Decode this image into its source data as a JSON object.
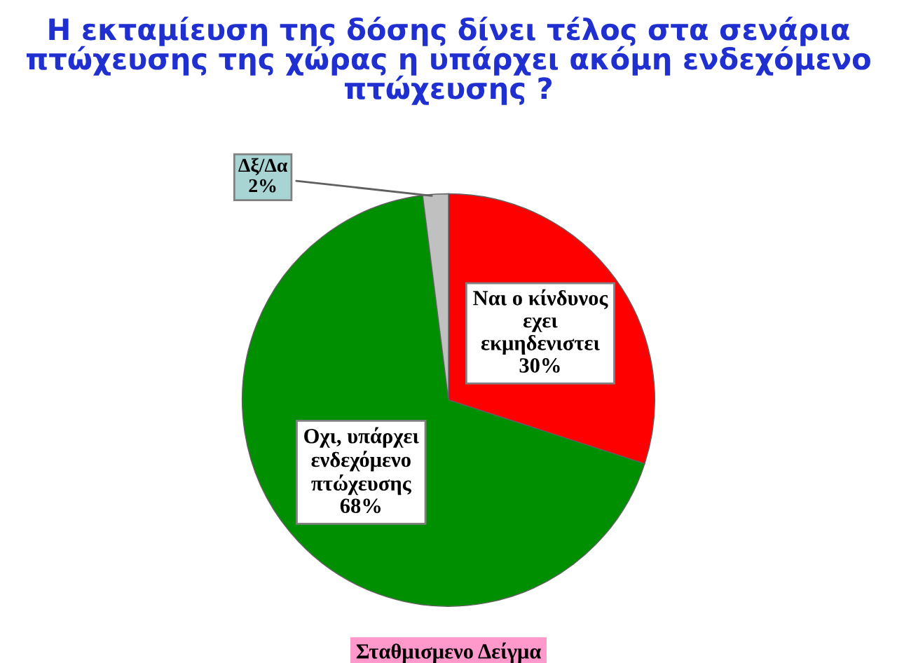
{
  "chart_data": {
    "type": "pie",
    "title": "Η εκταμίευση της δόσης δίνει τέλος στα σενάρια\nπτώχευσης της χώρας η υπάρχει ακόμη ενδεχόμενο\nπτώχευσης ?",
    "categories": [
      "Ναι ο κίνδυνος\nεχει\nεκμηδενιστει",
      "Οχι, υπάρχει\nενδεχόμενο\nπτώχευσης",
      "Δξ/Δα"
    ],
    "values": [
      30,
      68,
      2
    ],
    "value_labels": [
      "30%",
      "68%",
      "2%"
    ],
    "colors": [
      "#ff0000",
      "#008f00",
      "#c0c0c0"
    ],
    "annotations": [
      "Σταθμισμενο Δείγμα"
    ]
  }
}
